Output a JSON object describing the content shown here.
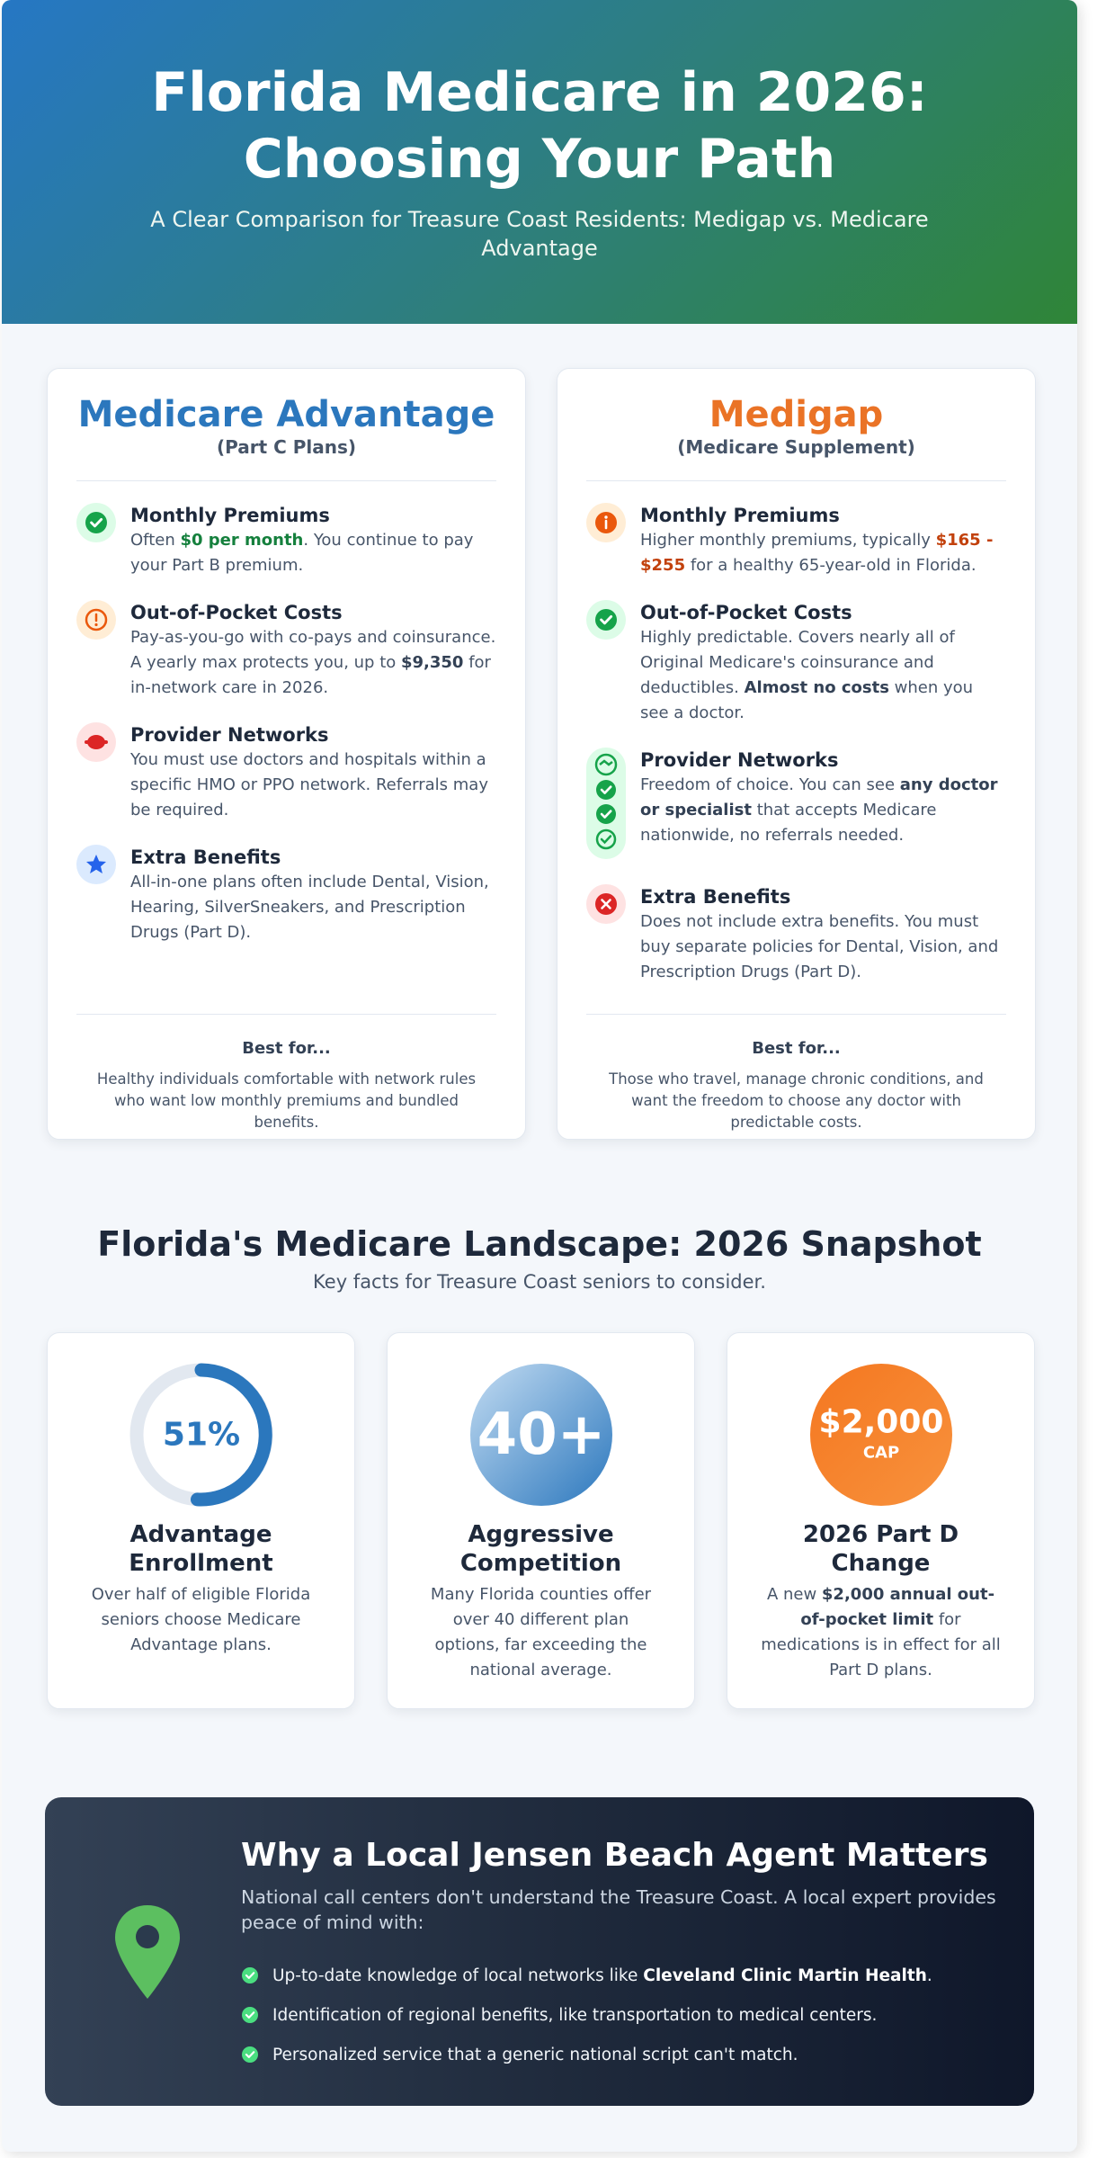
{
  "header": {
    "title": "Florida Medicare in 2026: Choosing Your Path",
    "subtitle": "A Clear Comparison for Treasure Coast Residents: Medigap vs. Medicare Advantage"
  },
  "plans": [
    {
      "title": "Medicare Advantage",
      "subtitle": "(Part C Plans)",
      "items": [
        {
          "heading": "Monthly Premiums",
          "body": [
            "Often ",
            "$0 per month",
            ". You continue to pay your Part B premium."
          ]
        },
        {
          "heading": "Out-of-Pocket Costs",
          "body": [
            "Pay-as-you-go with co-pays and coinsurance. A yearly max protects you, up to ",
            "$9,350",
            " for in-network care in 2026."
          ]
        },
        {
          "heading": "Provider Networks",
          "body": [
            "You must use doctors and hospitals within a specific HMO or PPO network. Referrals may be required."
          ]
        },
        {
          "heading": "Extra Benefits",
          "body": [
            "All-in-one plans often include Dental, Vision, Hearing, SilverSneakers, and Prescription Drugs (Part D)."
          ]
        }
      ],
      "best_for_label": "Best for...",
      "best_for_text": "Healthy individuals comfortable with network rules who want low monthly premiums and bundled benefits."
    },
    {
      "title": "Medigap",
      "subtitle": "(Medicare Supplement)",
      "items": [
        {
          "heading": "Monthly Premiums",
          "body": [
            "Higher monthly premiums, typically ",
            "$165 - $255",
            " for a healthy 65-year-old in Florida."
          ]
        },
        {
          "heading": "Out-of-Pocket Costs",
          "body": [
            "Highly predictable. Covers nearly all of Original Medicare's coinsurance and deductibles. ",
            "Almost no costs",
            " when you see a doctor."
          ]
        },
        {
          "heading": "Provider Networks",
          "body": [
            "Freedom of choice. You can see ",
            "any doctor or specialist",
            " that accepts Medicare nationwide, no referrals needed."
          ]
        },
        {
          "heading": "Extra Benefits",
          "body": [
            "Does not include extra benefits. You must buy separate policies for Dental, Vision, and Prescription Drugs (Part D)."
          ]
        }
      ],
      "best_for_label": "Best for...",
      "best_for_text": "Those who travel, manage chronic conditions, and want the freedom to choose any doctor with predictable costs."
    }
  ],
  "snapshot": {
    "title": "Florida's Medicare Landscape: 2026 Snapshot",
    "subtitle": "Key facts for Treasure Coast seniors to consider.",
    "stats": [
      {
        "figure": "51%",
        "title": "Advantage Enrollment",
        "body": [
          "Over half of eligible Florida seniors choose Medicare Advantage plans."
        ]
      },
      {
        "figure": "40+",
        "title": "Aggressive Competition",
        "body": [
          "Many Florida counties offer over 40 different plan options, far exceeding the national average."
        ]
      },
      {
        "figure": "$2,000",
        "figure_note": "CAP",
        "title": "2026 Part D Change",
        "body": [
          "A new ",
          "$2,000 annual out-of-pocket limit",
          " for medications is in effect for all Part D plans."
        ]
      }
    ]
  },
  "local": {
    "title": "Why a Local Jensen Beach Agent Matters",
    "text": "National call centers don't understand the Treasure Coast. A local expert provides peace of mind with:",
    "bullets": [
      [
        "Up-to-date knowledge of local networks like ",
        "Cleveland Clinic Martin Health",
        "."
      ],
      [
        "Identification of regional benefits, like transportation to medical centers."
      ],
      [
        "Personalized service that a generic national script can't match."
      ]
    ]
  }
}
